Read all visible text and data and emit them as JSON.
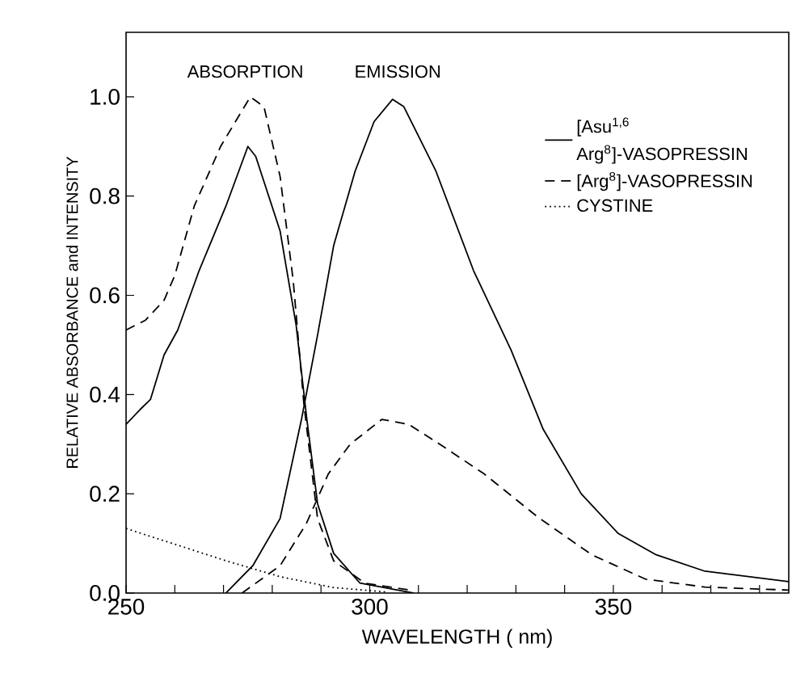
{
  "chart_data": {
    "type": "line",
    "xlabel": "WAVELENGTH ( nm)",
    "ylabel": "RELATIVE ABSORBANCE and INTENSITY",
    "xlim": [
      250,
      386
    ],
    "ylim": [
      0,
      1.13
    ],
    "xticks": [
      250,
      {
        "value": 260,
        "label": null
      },
      {
        "value": 270,
        "label": null
      },
      {
        "value": 280,
        "label": null
      },
      {
        "value": 290,
        "label": null
      },
      300,
      {
        "value": 310,
        "label": null
      },
      {
        "value": 320,
        "label": null
      },
      {
        "value": 330,
        "label": null
      },
      {
        "value": 340,
        "label": null
      },
      350,
      {
        "value": 360,
        "label": null
      },
      {
        "value": 370,
        "label": null
      },
      {
        "value": 380,
        "label": null
      }
    ],
    "yticks": [
      {
        "value": 0,
        "label": "0.0"
      },
      {
        "value": 0.2,
        "label": "0.2"
      },
      {
        "value": 0.4,
        "label": "0.4"
      },
      {
        "value": 0.6,
        "label": "0.6"
      },
      {
        "value": 0.8,
        "label": "0.8"
      },
      {
        "value": 1,
        "label": "1.0"
      }
    ],
    "legend": "top right",
    "grid": false,
    "annotations": [
      "ABSORPTION",
      "EMISSION"
    ],
    "series": [
      {
        "name": "[Asu$^{1,6}$ Arg$^{8}$]-VASOPRESSIN",
        "color": "#000000",
        "line_style": "solid",
        "x": [
          250,
          252.9,
          255,
          257.8,
          260.6,
          265,
          270.5,
          275,
          276.6,
          281.6,
          284.9,
          287.1,
          289.3,
          292.6,
          298,
          309
        ],
        "values": [
          0.34,
          0.37,
          0.39,
          0.48,
          0.53,
          0.65,
          0.78,
          0.9,
          0.88,
          0.73,
          0.54,
          0.35,
          0.18,
          0.08,
          0.02,
          0.0
        ]
      },
      {
        "name": "[Arg$^{8}$]-VASOPRESSIN",
        "color": "#000000",
        "line_style": "dashed",
        "x": [
          250,
          254,
          257.8,
          260,
          264,
          269.4,
          275.5,
          278.3,
          281.6,
          284.3,
          286.5,
          289.3,
          292.6,
          299,
          309
        ],
        "values": [
          0.53,
          0.55,
          0.59,
          0.64,
          0.78,
          0.9,
          1.0,
          0.98,
          0.84,
          0.63,
          0.38,
          0.15,
          0.065,
          0.02,
          0.005
        ]
      },
      {
        "name": "CYSTINE",
        "color": "#000000",
        "line_style": "dotted",
        "x": [
          250,
          259.5,
          270.5,
          281.6,
          292.6,
          303.6
        ],
        "values": [
          0.13,
          0.1,
          0.065,
          0.033,
          0.011,
          0.002
        ]
      },
      {
        "color": "#000000",
        "line_style": "solid",
        "x": [
          270.5,
          276,
          281.6,
          286,
          289.3,
          292.6,
          297,
          300.9,
          304.7,
          307,
          313.6,
          321.3,
          329,
          335.6,
          343.4,
          351,
          358.8,
          368.8,
          386
        ],
        "values": [
          0,
          0.055,
          0.15,
          0.35,
          0.52,
          0.7,
          0.85,
          0.95,
          0.995,
          0.98,
          0.85,
          0.65,
          0.49,
          0.33,
          0.2,
          0.12,
          0.077,
          0.044,
          0.023
        ]
      },
      {
        "color": "#000000",
        "line_style": "dashed",
        "x": [
          273.8,
          281.6,
          287,
          291.5,
          296,
          302.5,
          308,
          313.6,
          323.5,
          334.5,
          345.6,
          356.6,
          368.8,
          386
        ],
        "values": [
          0,
          0.055,
          0.14,
          0.24,
          0.3,
          0.35,
          0.34,
          0.305,
          0.24,
          0.153,
          0.077,
          0.028,
          0.012,
          0.006
        ]
      }
    ]
  }
}
